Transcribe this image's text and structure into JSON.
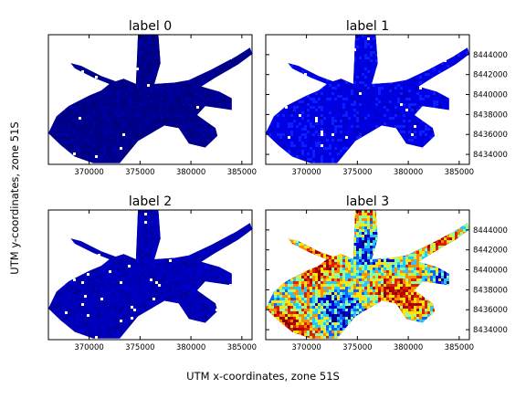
{
  "figure": {
    "xlabel": "UTM x-coordinates, zone 51S",
    "ylabel": "UTM y-coordinates, zone 51S"
  },
  "chart_data": [
    {
      "type": "heatmap",
      "title": "label 0",
      "xlim": [
        366000,
        386000
      ],
      "ylim": [
        8433000,
        8446000
      ],
      "x_ticks": [
        "370000",
        "375000",
        "380000",
        "385000"
      ],
      "y_ticks": [],
      "fill_colors": [
        "#00007a",
        "#000090",
        "#0000a8"
      ],
      "dominant_color": "#00008c"
    },
    {
      "type": "heatmap",
      "title": "label 1",
      "xlim": [
        366000,
        386000
      ],
      "ylim": [
        8433000,
        8446000
      ],
      "x_ticks": [
        "370000",
        "375000",
        "380000",
        "385000"
      ],
      "y_ticks": [
        "8434000",
        "8436000",
        "8438000",
        "8440000",
        "8442000",
        "8444000"
      ],
      "fill_colors": [
        "#0000c8",
        "#0000e6",
        "#0a1eff"
      ],
      "dominant_color": "#0000e0"
    },
    {
      "type": "heatmap",
      "title": "label 2",
      "xlim": [
        366000,
        386000
      ],
      "ylim": [
        8433000,
        8446000
      ],
      "x_ticks": [
        "370000",
        "375000",
        "380000",
        "385000"
      ],
      "y_ticks": [],
      "fill_colors": [
        "#0000a0",
        "#0000b8",
        "#0000cc"
      ],
      "dominant_color": "#0000b4"
    },
    {
      "type": "heatmap",
      "title": "label 3",
      "xlim": [
        366000,
        386000
      ],
      "ylim": [
        8433000,
        8446000
      ],
      "x_ticks": [
        "370000",
        "375000",
        "380000",
        "385000"
      ],
      "y_ticks": [
        "8434000",
        "8436000",
        "8438000",
        "8440000",
        "8442000",
        "8444000"
      ],
      "fill_colors": [
        "#8b0000",
        "#b40000",
        "#e01e00",
        "#ff8c00",
        "#ffe600",
        "#8cffa0",
        "#22c8ff",
        "#0a64ff",
        "#0000cd",
        "#00008b"
      ],
      "dominant_color": "#8b0000"
    }
  ]
}
